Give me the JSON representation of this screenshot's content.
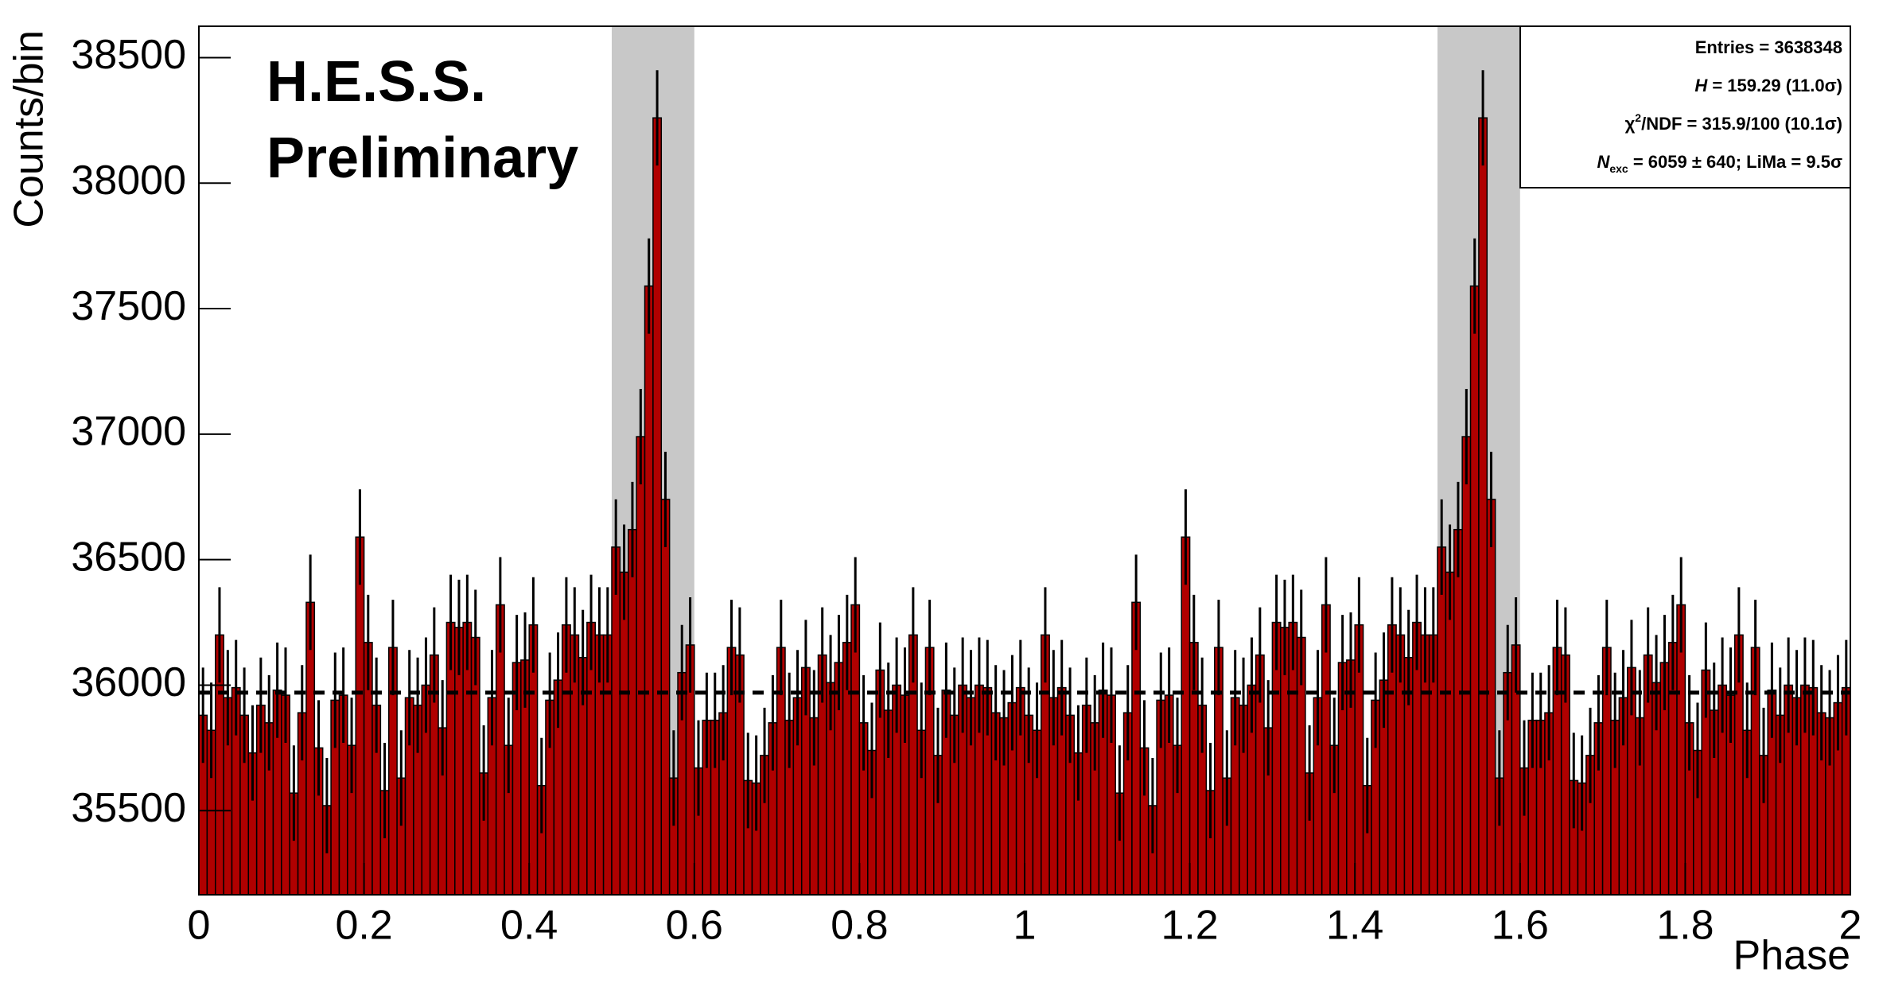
{
  "chart_data": {
    "type": "histogram",
    "title_lines": [
      "H.E.S.S.",
      "Preliminary"
    ],
    "x_label": "Phase",
    "y_label": "Counts/bin",
    "stats": [
      [
        "Entries = 3638348"
      ],
      [
        "H",
        " = 159.29 (11.0σ)"
      ],
      [
        "χ",
        "2",
        "/NDF = 315.9/100 (10.1σ)"
      ],
      [
        "N",
        "exc",
        " = 6059 ± 640; LiMa = 9.5σ"
      ]
    ],
    "color": "#b00000",
    "region_color": "#c8c8c8",
    "regions": [
      [
        0.5,
        0.6
      ],
      [
        1.5,
        1.6
      ]
    ],
    "mean_level": 35970,
    "xlim": [
      0,
      2
    ],
    "ylim": [
      35165,
      38625
    ],
    "xticks": [
      0,
      0.2,
      0.4,
      0.6,
      0.8,
      1,
      1.2,
      1.4,
      1.6,
      1.8,
      2
    ],
    "yticks": [
      35500,
      36000,
      36500,
      37000,
      37500,
      38000,
      38500
    ],
    "bins": [
      0,
      0.01,
      0.02,
      0.03,
      0.04,
      0.05,
      0.06,
      0.07,
      0.08,
      0.09,
      0.1,
      0.11,
      0.12,
      0.13,
      0.14,
      0.15,
      0.16,
      0.17,
      0.18,
      0.19,
      0.2,
      0.21,
      0.22,
      0.23,
      0.24,
      0.25,
      0.26,
      0.27,
      0.28,
      0.29,
      0.3,
      0.31,
      0.32,
      0.33,
      0.34,
      0.35,
      0.36,
      0.37,
      0.38,
      0.39,
      0.4,
      0.41,
      0.42,
      0.43,
      0.44,
      0.45,
      0.46,
      0.47,
      0.48,
      0.49,
      0.5,
      0.51,
      0.52,
      0.53,
      0.54,
      0.55,
      0.56,
      0.57,
      0.58,
      0.59,
      0.6,
      0.61,
      0.62,
      0.63,
      0.64,
      0.65,
      0.66,
      0.67,
      0.68,
      0.69,
      0.7,
      0.71,
      0.72,
      0.73,
      0.74,
      0.75,
      0.76,
      0.77,
      0.78,
      0.79,
      0.8,
      0.81,
      0.82,
      0.83,
      0.84,
      0.85,
      0.86,
      0.87,
      0.88,
      0.89,
      0.9,
      0.91,
      0.92,
      0.93,
      0.94,
      0.95,
      0.96,
      0.97,
      0.98,
      0.99,
      1,
      1.01,
      1.02,
      1.03,
      1.04,
      1.05,
      1.06,
      1.07,
      1.08,
      1.09,
      1.1,
      1.11,
      1.12,
      1.13,
      1.14,
      1.15,
      1.16,
      1.17,
      1.18,
      1.19,
      1.2,
      1.21,
      1.22,
      1.23,
      1.24,
      1.25,
      1.26,
      1.27,
      1.28,
      1.29,
      1.3,
      1.31,
      1.32,
      1.33,
      1.34,
      1.35,
      1.36,
      1.37,
      1.38,
      1.39,
      1.4,
      1.41,
      1.42,
      1.43,
      1.44,
      1.45,
      1.46,
      1.47,
      1.48,
      1.49,
      1.5,
      1.51,
      1.52,
      1.53,
      1.54,
      1.55,
      1.56,
      1.57,
      1.58,
      1.59,
      1.6,
      1.61,
      1.62,
      1.63,
      1.64,
      1.65,
      1.66,
      1.67,
      1.68,
      1.69,
      1.7,
      1.71,
      1.72,
      1.73,
      1.74,
      1.75,
      1.76,
      1.77,
      1.78,
      1.79,
      1.8,
      1.81,
      1.82,
      1.83,
      1.84,
      1.85,
      1.86,
      1.87,
      1.88,
      1.89,
      1.9,
      1.91,
      1.92,
      1.93,
      1.94,
      1.95,
      1.96,
      1.97,
      1.98,
      1.99,
      2
    ],
    "values": [
      35880,
      35820,
      36200,
      35950,
      35990,
      35880,
      35730,
      35920,
      35850,
      35980,
      35960,
      35570,
      35890,
      36330,
      35750,
      35520,
      35940,
      35960,
      35760,
      36590,
      36170,
      35920,
      35580,
      36150,
      35630,
      35950,
      35920,
      36000,
      36120,
      35830,
      36250,
      36230,
      36250,
      36190,
      35650,
      35950,
      36320,
      35760,
      36090,
      36100,
      36240,
      35600,
      35940,
      36020,
      36240,
      36200,
      36110,
      36250,
      36200,
      36200,
      36550,
      36450,
      36620,
      36990,
      37590,
      38260,
      36740,
      35630,
      36050,
      36160,
      35670,
      35860,
      35860,
      35890,
      36150,
      36120,
      35620,
      35610,
      35720,
      35850,
      36150,
      35860,
      35950,
      36070,
      35870,
      36120,
      36010,
      36090,
      36170,
      36320,
      35850,
      35740,
      36060,
      35900,
      36000,
      35960,
      36200,
      35820,
      36150,
      35720,
      35980,
      35880,
      36000,
      35950,
      36000,
      35990,
      35890,
      35870,
      35930,
      35990,
      35880,
      35820,
      36200,
      35950,
      35990,
      35880,
      35730,
      35920,
      35850,
      35980,
      35960,
      35570,
      35890,
      36330,
      35750,
      35520,
      35940,
      35960,
      35760,
      36590,
      36170,
      35920,
      35580,
      36150,
      35630,
      35950,
      35920,
      36000,
      36120,
      35830,
      36250,
      36230,
      36250,
      36190,
      35650,
      35950,
      36320,
      35760,
      36090,
      36100,
      36240,
      35600,
      35940,
      36020,
      36240,
      36200,
      36110,
      36250,
      36200,
      36200,
      36550,
      36450,
      36620,
      36990,
      37590,
      38260,
      36740,
      35630,
      36050,
      36160,
      35670,
      35860,
      35860,
      35890,
      36150,
      36120,
      35620,
      35610,
      35720,
      35850,
      36150,
      35860,
      35950,
      36070,
      35870,
      36120,
      36010,
      36090,
      36170,
      36320,
      35850,
      35740,
      36060,
      35900,
      36000,
      35960,
      36200,
      35820,
      36150,
      35720,
      35980,
      35880,
      36000,
      35950,
      36000,
      35990,
      35890,
      35870,
      35930,
      35990
    ],
    "errors": [
      190,
      190,
      190,
      190,
      190,
      190,
      190,
      190,
      190,
      190,
      190,
      190,
      190,
      190,
      190,
      190,
      190,
      190,
      190,
      190,
      190,
      190,
      190,
      190,
      190,
      190,
      190,
      190,
      190,
      190,
      190,
      190,
      190,
      190,
      190,
      190,
      190,
      190,
      190,
      190,
      190,
      190,
      190,
      190,
      190,
      190,
      190,
      190,
      190,
      190,
      190,
      190,
      190,
      190,
      190,
      190,
      190,
      190,
      190,
      190,
      190,
      190,
      190,
      190,
      190,
      190,
      190,
      190,
      190,
      190,
      190,
      190,
      190,
      190,
      190,
      190,
      190,
      190,
      190,
      190,
      190,
      190,
      190,
      190,
      190,
      190,
      190,
      190,
      190,
      190,
      190,
      190,
      190,
      190,
      190,
      190,
      190,
      190,
      190,
      190,
      190,
      190,
      190,
      190,
      190,
      190,
      190,
      190,
      190,
      190,
      190,
      190,
      190,
      190,
      190,
      190,
      190,
      190,
      190,
      190,
      190,
      190,
      190,
      190,
      190,
      190,
      190,
      190,
      190,
      190,
      190,
      190,
      190,
      190,
      190,
      190,
      190,
      190,
      190,
      190,
      190,
      190,
      190,
      190,
      190,
      190,
      190,
      190,
      190,
      190,
      190,
      190,
      190,
      190,
      190,
      190,
      190,
      190,
      190,
      190,
      190,
      190,
      190,
      190,
      190,
      190,
      190,
      190,
      190,
      190,
      190,
      190,
      190,
      190,
      190,
      190,
      190,
      190,
      190,
      190,
      190,
      190,
      190,
      190,
      190,
      190,
      190,
      190,
      190,
      190,
      190,
      190,
      190,
      190,
      190,
      190,
      190,
      190,
      190,
      190
    ]
  }
}
